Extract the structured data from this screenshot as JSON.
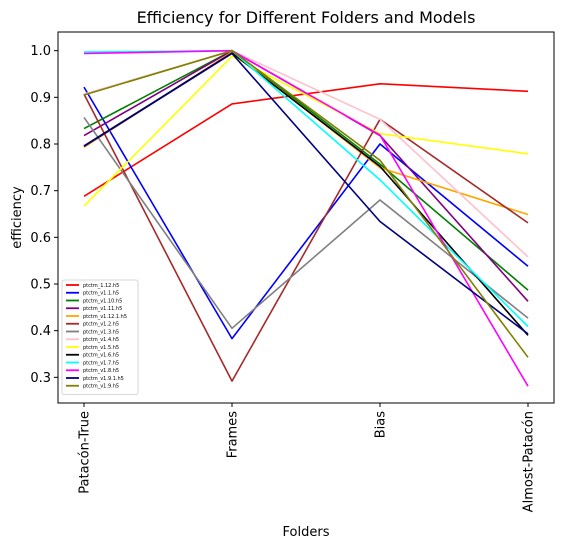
{
  "chart_data": {
    "type": "line",
    "title": "Efficiency for Different Folders and Models",
    "xlabel": "Folders",
    "ylabel": "efficiency",
    "categories": [
      "Patacón-True",
      "Frames",
      "Bias",
      "Almost-Patacón"
    ],
    "ylim": [
      0.245,
      1.04
    ],
    "yticks": [
      0.3,
      0.4,
      0.5,
      0.6,
      0.7,
      0.8,
      0.9,
      1.0
    ],
    "ytick_labels": [
      "0.3",
      "0.4",
      "0.5",
      "0.6",
      "0.7",
      "0.8",
      "0.9",
      "1.0"
    ],
    "grid": false,
    "legend_position": "lower-left",
    "series": [
      {
        "name": "ptctm_1.12.h5",
        "color": "#ff0000",
        "values": [
          0.688,
          0.886,
          0.929,
          0.913
        ]
      },
      {
        "name": "ptctm_v1.1.h5",
        "color": "#0000ff",
        "values": [
          0.922,
          0.383,
          0.8,
          0.538
        ]
      },
      {
        "name": "ptctm_v1.10.h5",
        "color": "#008000",
        "values": [
          0.833,
          1.0,
          0.757,
          0.487
        ]
      },
      {
        "name": "ptctm_v1.11.h5",
        "color": "#800080",
        "values": [
          0.818,
          1.0,
          0.818,
          0.463
        ]
      },
      {
        "name": "ptctm_v1.12.1.h5",
        "color": "#ffa500",
        "values": [
          0.793,
          0.997,
          0.749,
          0.649
        ]
      },
      {
        "name": "ptctm_v1.2.h5",
        "color": "#a52a2a",
        "values": [
          0.907,
          0.292,
          0.853,
          0.631
        ]
      },
      {
        "name": "ptctm_v1.3.h5",
        "color": "#808080",
        "values": [
          0.857,
          0.405,
          0.68,
          0.427
        ]
      },
      {
        "name": "ptctm_v1.4.h5",
        "color": "#ffc0cb",
        "values": [
          0.907,
          1.0,
          0.853,
          0.558
        ]
      },
      {
        "name": "ptctm_v1.5.h5",
        "color": "#ffff00",
        "values": [
          0.667,
          0.988,
          0.822,
          0.779
        ]
      },
      {
        "name": "ptctm_v1.6.h5",
        "color": "#000000",
        "values": [
          0.796,
          0.995,
          0.752,
          0.39
        ]
      },
      {
        "name": "ptctm_v1.7.h5",
        "color": "#00ffff",
        "values": [
          0.997,
          1.0,
          0.723,
          0.409
        ]
      },
      {
        "name": "ptctm_v1.8.h5",
        "color": "#ff00ff",
        "values": [
          0.994,
          1.0,
          0.819,
          0.281
        ]
      },
      {
        "name": "ptctm_v1.9.1.h5",
        "color": "#000080",
        "values": [
          0.795,
          0.994,
          0.634,
          0.393
        ]
      },
      {
        "name": "ptctm_v1.9.h5",
        "color": "#808000",
        "values": [
          0.905,
          1.0,
          0.765,
          0.343
        ]
      }
    ]
  }
}
